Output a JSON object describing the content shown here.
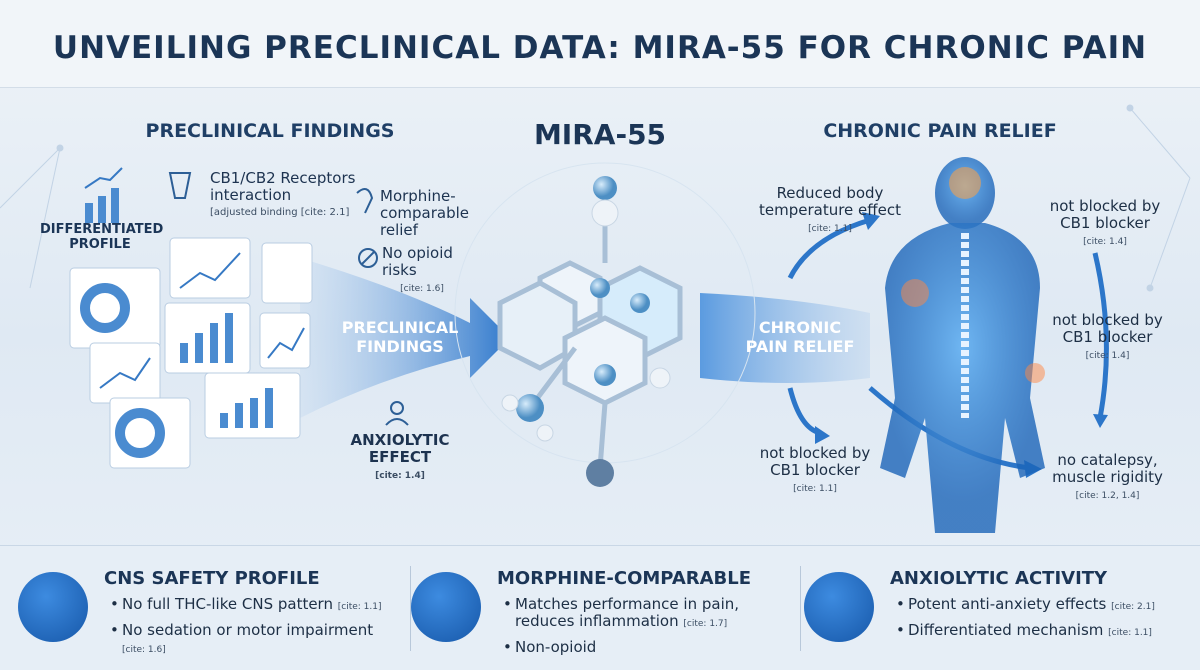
{
  "header": {
    "title": "UNVEILING PRECLINICAL DATA: MIRA-55 FOR CHRONIC PAIN"
  },
  "left": {
    "heading": "PRECLINICAL FINDINGS",
    "profile": "DIFFERENTIATED PROFILE",
    "receptors": {
      "text": "CB1/CB2 Receptors interaction",
      "cite": "[adjusted binding [cite: 2.1]"
    },
    "morphine": {
      "text": "Morphine-comparable relief"
    },
    "opioid": {
      "text": "No opioid risks",
      "cite": "[cite: 1.6]"
    },
    "arrow_label": "PRECLINICAL FINDINGS",
    "anxiolytic": {
      "text": "ANXIOLYTIC EFFECT",
      "cite": "[cite: 1.4]"
    }
  },
  "center": {
    "heading": "MIRA-55"
  },
  "right": {
    "heading": "CHRONIC PAIN RELIEF",
    "arrow_label": "CHRONIC PAIN RELIEF",
    "temperature": {
      "text": "Reduced body temperature effect",
      "cite": "[cite: 1.1]"
    },
    "blocker_low": {
      "text": "not blocked by CB1 blocker",
      "cite": "[cite: 1.1]"
    },
    "blocker_top": {
      "text": "not blocked by CB1 blocker",
      "cite": "[cite: 1.4]"
    },
    "blocker_mid": {
      "text": "not blocked by CB1 blocker",
      "cite": "[cite: 1.4]"
    },
    "catalepsy": {
      "text": "no catalepsy, muscle rigidity",
      "cite": "[cite: 1.2, 1.4]"
    }
  },
  "cards": [
    {
      "title": "CNS SAFETY PROFILE",
      "items": [
        {
          "text": "No full THC-like CNS pattern",
          "cite": "[cite: 1.1]"
        },
        {
          "text": "No sedation or motor impairment",
          "cite": "[cite: 1.6]"
        }
      ]
    },
    {
      "title": "MORPHINE-COMPARABLE",
      "items": [
        {
          "text": "Matches performance in pain, reduces inflammation",
          "cite": "[cite: 1.7]"
        },
        {
          "text": "Non-opioid"
        }
      ]
    },
    {
      "title": "ANXIOLYTIC ACTIVITY",
      "items": [
        {
          "text": "Potent anti-anxiety effects",
          "cite": "[cite: 2.1]"
        },
        {
          "text": "Differentiated mechanism",
          "cite": "[cite: 1.1]"
        }
      ]
    }
  ]
}
